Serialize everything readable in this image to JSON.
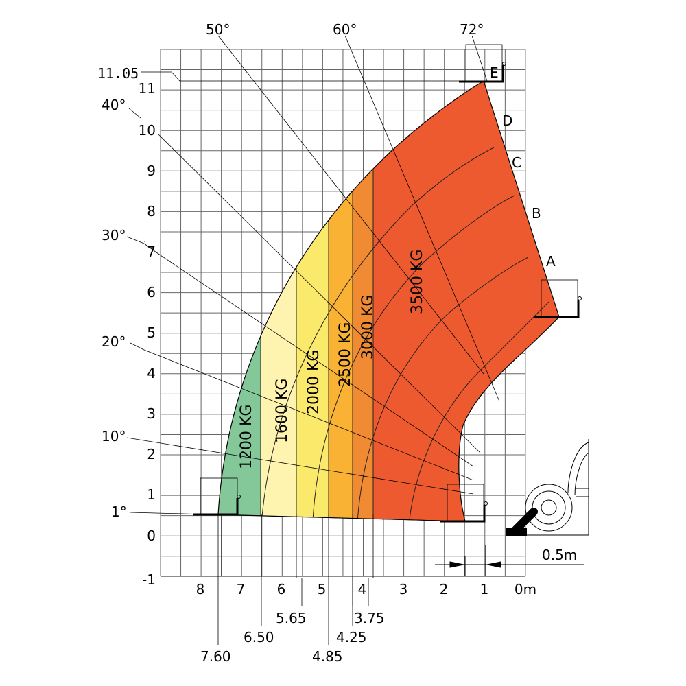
{
  "top_angles": [
    "50°",
    "60°",
    "72°"
  ],
  "left_angles": [
    "40°",
    "30°",
    "20°",
    "10°",
    "1°"
  ],
  "max_height_label": "11.05",
  "y_ticks": [
    "11",
    "10",
    "9",
    "8",
    "7",
    "6",
    "5",
    "4",
    "3",
    "2",
    "1",
    "0",
    "-1"
  ],
  "x_ticks": [
    "8",
    "7",
    "6",
    "5",
    "4",
    "3",
    "2",
    "1",
    "0m"
  ],
  "boom_positions": [
    "A",
    "B",
    "C",
    "D",
    "E"
  ],
  "load_zones": [
    {
      "label": "1200 KG",
      "color": "#84c89a",
      "reach_m": "7.60"
    },
    {
      "label": "1600 KG",
      "color": "#fef4b0",
      "reach_m": "6.50"
    },
    {
      "label": "2000 KG",
      "color": "#fbe96c",
      "reach_m": "5.65"
    },
    {
      "label": "2500 KG",
      "color": "#f9b233",
      "reach_m": "4.85"
    },
    {
      "label": "3000 KG",
      "color": "#f08a33",
      "reach_m": "4.25"
    },
    {
      "label": "3500 KG",
      "color": "#ee5a2f",
      "reach_m": "3.75"
    }
  ],
  "scale_label": "0.5m"
}
